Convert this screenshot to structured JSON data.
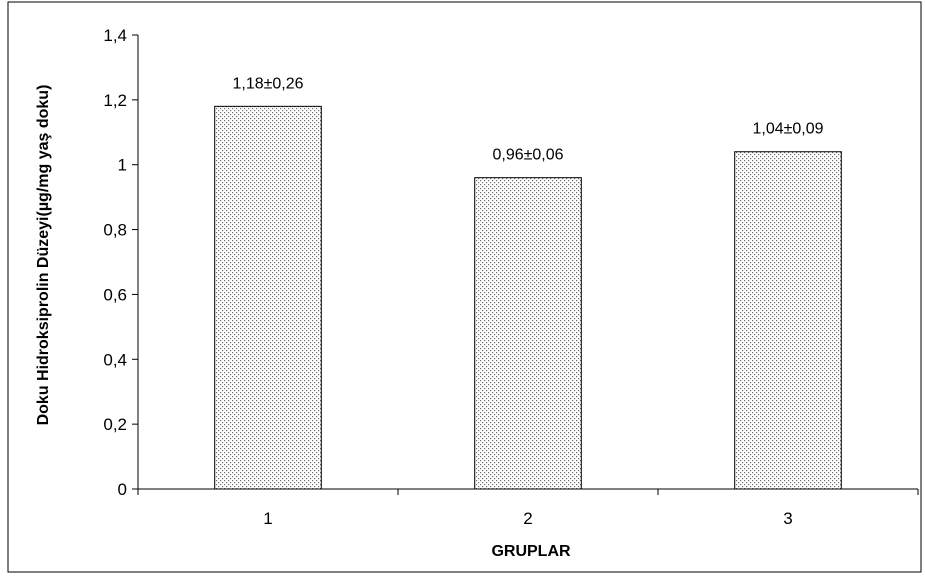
{
  "chart_data": {
    "type": "bar",
    "title": "",
    "xlabel": "GRUPLAR",
    "ylabel": "Doku Hidroksiprolin Düzeyi(µg/mg yaş doku)",
    "categories": [
      "1",
      "2",
      "3"
    ],
    "values": [
      1.18,
      0.96,
      1.04
    ],
    "data_labels": [
      "1,18±0,26",
      "0,96±0,06",
      "1,04±0,09"
    ],
    "ylim": [
      0,
      1.4
    ],
    "yticks": [
      0,
      0.2,
      0.4,
      0.6,
      0.8,
      1,
      1.2,
      1.4
    ],
    "ytick_labels": [
      "0",
      "0,2",
      "0,4",
      "0,6",
      "0,8",
      "1",
      "1,2",
      "1,4"
    ],
    "grid": false,
    "legend": "none",
    "bar_fill": "dotted-gray",
    "colors": {
      "bar_stroke": "#000000",
      "dot": "#6e6e6e",
      "frame": "#000000"
    }
  }
}
